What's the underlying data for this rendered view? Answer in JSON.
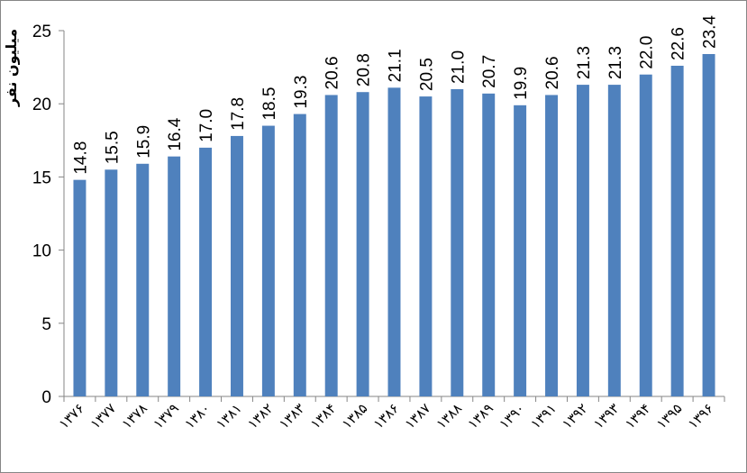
{
  "chart_data": {
    "type": "bar",
    "ylabel": "میلیون نفر",
    "ylim": [
      0,
      25
    ],
    "yticks": [
      "0",
      "5",
      "10",
      "15",
      "20",
      "25"
    ],
    "categories": [
      "۱۳۷۶",
      "۱۳۷۷",
      "۱۳۷۸",
      "۱۳۷۹",
      "۱۳۸۰",
      "۱۳۸۱",
      "۱۳۸۲",
      "۱۳۸۳",
      "۱۳۸۴",
      "۱۳۸۵",
      "۱۳۸۶",
      "۱۳۸۷",
      "۱۳۸۸",
      "۱۳۸۹",
      "۱۳۹۰",
      "۱۳۹۱",
      "۱۳۹۲",
      "۱۳۹۳",
      "۱۳۹۴",
      "۱۳۹۵",
      "۱۳۹۶"
    ],
    "values": [
      14.8,
      15.5,
      15.9,
      16.4,
      17.0,
      17.8,
      18.5,
      19.3,
      20.6,
      20.8,
      21.1,
      20.5,
      21.0,
      20.7,
      19.9,
      20.6,
      21.3,
      21.3,
      22.0,
      22.6,
      23.4
    ],
    "data_labels": [
      "14.8",
      "15.5",
      "15.9",
      "16.4",
      "17.0",
      "17.8",
      "18.5",
      "19.3",
      "20.6",
      "20.8",
      "21.1",
      "20.5",
      "21.0",
      "20.7",
      "19.9",
      "20.6",
      "21.3",
      "21.3",
      "22.0",
      "22.6",
      "23.4"
    ],
    "bar_color": "#4f81bd",
    "grid": false,
    "legend": "none"
  }
}
